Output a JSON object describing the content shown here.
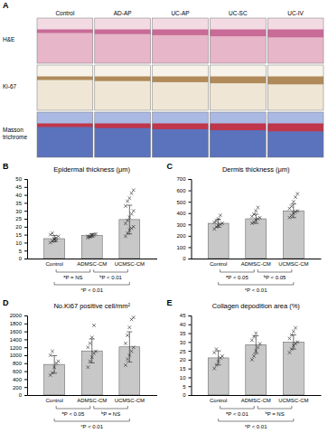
{
  "image_panel": {
    "label": "A",
    "columns": [
      "Control",
      "AD-AP",
      "UC-AP",
      "UC-SC",
      "UC-IV"
    ],
    "rows": [
      "H&E",
      "Ki-67",
      "Masson trichrome"
    ]
  },
  "chart_data": [
    {
      "type": "bar",
      "label": "B",
      "title": "Epidermal thickness (μm)",
      "categories": [
        "Control",
        "ADMSC-CM",
        "UCMSC-CM"
      ],
      "values": [
        12.5,
        14.5,
        24.5
      ],
      "errors": [
        2,
        1,
        9
      ],
      "points": [
        [
          10,
          11,
          12,
          13,
          14,
          15,
          16,
          12.5,
          11.5
        ],
        [
          13,
          14,
          14.5,
          15,
          15.5,
          14,
          13.5,
          15
        ],
        [
          14,
          16,
          18,
          19,
          20,
          22,
          24,
          26,
          28,
          30,
          33,
          36,
          38,
          41,
          43
        ]
      ],
      "color": "#c8c8c8",
      "ylim": [
        0,
        50
      ],
      "yticks": [
        0,
        5,
        10,
        15,
        20,
        25,
        30,
        35,
        40,
        45,
        50
      ],
      "annotations": [
        {
          "from": 0,
          "to": 1,
          "text": "ᵃP = NS"
        },
        {
          "from": 1,
          "to": 2,
          "text": "ᵇP < 0.01"
        },
        {
          "from": 0,
          "to": 2,
          "text": "ᶜP < 0.01"
        }
      ]
    },
    {
      "type": "bar",
      "label": "C",
      "title": "Dermis thickness (μm)",
      "categories": [
        "Control",
        "ADMSC-CM",
        "UCMSC-CM"
      ],
      "values": [
        310,
        350,
        420
      ],
      "errors": [
        35,
        40,
        60
      ],
      "points": [
        [
          260,
          280,
          290,
          300,
          310,
          320,
          330,
          350,
          380
        ],
        [
          310,
          320,
          340,
          350,
          360,
          370,
          390,
          420,
          450
        ],
        [
          360,
          380,
          400,
          410,
          420,
          440,
          460,
          500,
          540,
          570
        ]
      ],
      "color": "#c8c8c8",
      "ylim": [
        0,
        700
      ],
      "yticks": [
        0,
        100,
        200,
        300,
        400,
        500,
        600,
        700
      ],
      "annotations": [
        {
          "from": 0,
          "to": 1,
          "text": "ᵃP < 0.05"
        },
        {
          "from": 1,
          "to": 2,
          "text": "ᵇP < 0.05"
        },
        {
          "from": 0,
          "to": 2,
          "text": "ᶜP < 0.01"
        }
      ]
    },
    {
      "type": "bar",
      "label": "D",
      "title": "No.Ki67 positive cell/mm²",
      "categories": [
        "Control",
        "ADMSC-CM",
        "UCMSC-CM"
      ],
      "values": [
        770,
        1110,
        1210
      ],
      "errors": [
        220,
        300,
        380
      ],
      "points": [
        [
          500,
          560,
          700,
          800,
          850,
          1000,
          1100
        ],
        [
          700,
          850,
          950,
          1050,
          1100,
          1200,
          1300,
          1450,
          1750
        ],
        [
          750,
          900,
          1000,
          1100,
          1200,
          1300,
          1500,
          1700,
          1900,
          1950
        ]
      ],
      "color": "#c8c8c8",
      "ylim": [
        0,
        2000
      ],
      "yticks": [
        0,
        200,
        400,
        600,
        800,
        1000,
        1200,
        1400,
        1600,
        1800,
        2000
      ],
      "annotations": [
        {
          "from": 0,
          "to": 1,
          "text": "ᵃP < 0.05"
        },
        {
          "from": 1,
          "to": 2,
          "text": "ᵇP = NS"
        },
        {
          "from": 0,
          "to": 2,
          "text": "ᶜP < 0.01"
        }
      ]
    },
    {
      "type": "bar",
      "label": "E",
      "title": "Collagen depodition area (%)",
      "categories": [
        "Control",
        "ADMSC-CM",
        "UCMSC-CM"
      ],
      "values": [
        21,
        28.5,
        30
      ],
      "errors": [
        4,
        5,
        4
      ],
      "points": [
        [
          15,
          17,
          19,
          21,
          22,
          24,
          26
        ],
        [
          20,
          22,
          25,
          27,
          29,
          31,
          33,
          35
        ],
        [
          24,
          26,
          28,
          29,
          30,
          32,
          34,
          36,
          38
        ]
      ],
      "color": "#c8c8c8",
      "ylim": [
        0,
        45
      ],
      "yticks": [
        0,
        5,
        10,
        15,
        20,
        25,
        30,
        35,
        40,
        45
      ],
      "annotations": [
        {
          "from": 0,
          "to": 1,
          "text": "ᵃP < 0.01"
        },
        {
          "from": 1,
          "to": 2,
          "text": "ᵇP = NS"
        },
        {
          "from": 0,
          "to": 2,
          "text": "ᶜP < 0.01"
        }
      ]
    }
  ]
}
